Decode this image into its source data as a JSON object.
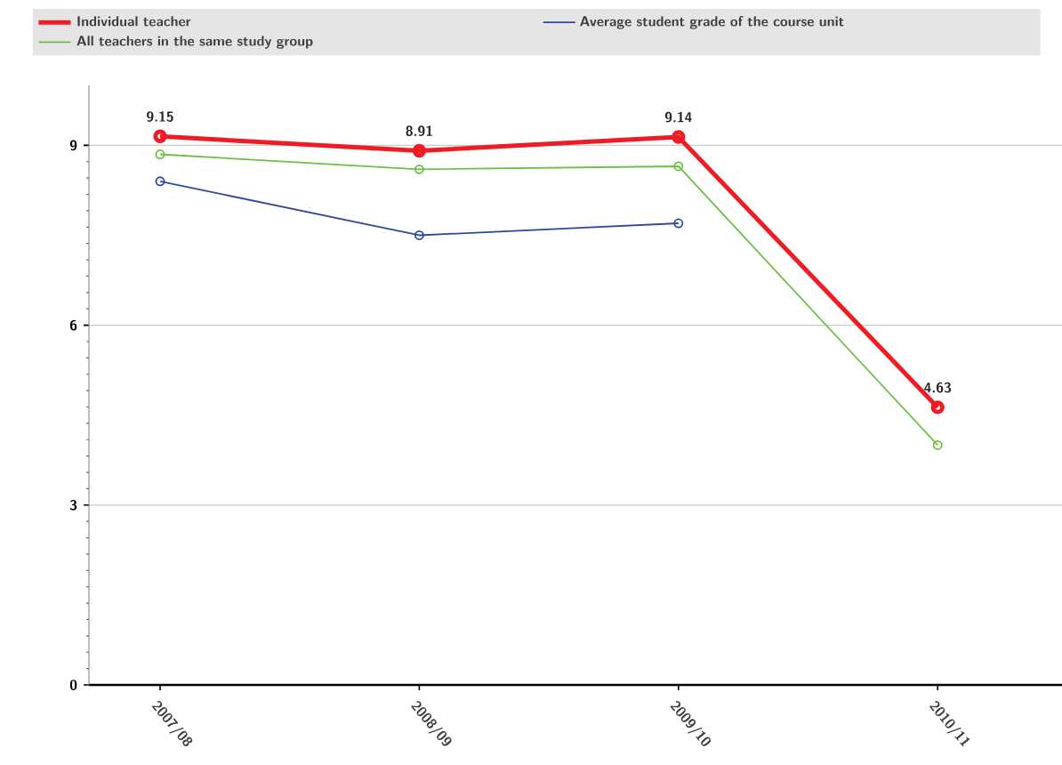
{
  "chart_data": {
    "type": "line",
    "categories": [
      "2007/08",
      "2008/09",
      "2009/10",
      "2010/11"
    ],
    "series": [
      {
        "name": "Individual teacher",
        "color": "#ee1c25",
        "values": [
          9.15,
          8.91,
          9.14,
          4.63
        ],
        "value_labels": [
          "9.15",
          "8.91",
          "9.14",
          "4.63"
        ]
      },
      {
        "name": "Average student grade of the course unit",
        "color": "#2e4a9e",
        "values": [
          8.4,
          7.5,
          7.7,
          null
        ]
      },
      {
        "name": "All teachers in the same study group",
        "color": "#6dbf45",
        "values": [
          8.85,
          8.6,
          8.65,
          4.0
        ]
      }
    ],
    "ylim": [
      0,
      10
    ],
    "yticks": [
      0,
      3,
      6,
      9
    ],
    "grid": "y",
    "legend": "top",
    "marker": "circle",
    "line_style": "solid"
  }
}
